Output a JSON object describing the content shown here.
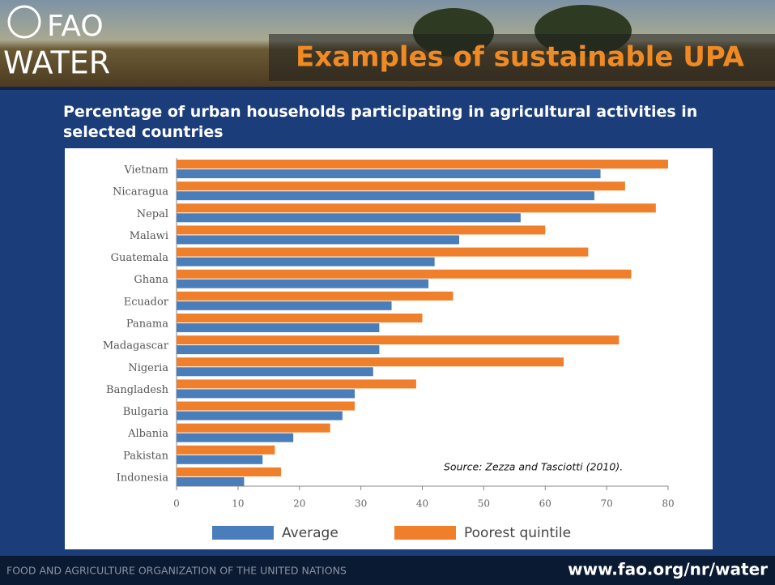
{
  "header": {
    "logo_top": "FAO",
    "logo_bottom": "WATER",
    "title": "Examples of sustainable UPA"
  },
  "chart_data": {
    "type": "bar",
    "orientation": "horizontal",
    "title": "Percentage of urban households participating in agricultural activities in selected countries",
    "annotation": "Source: Zezza and Tasciotti (2010).",
    "categories": [
      "Vietnam",
      "Nicaragua",
      "Nepal",
      "Malawi",
      "Guatemala",
      "Ghana",
      "Ecuador",
      "Panama",
      "Madagascar",
      "Nigeria",
      "Bangladesh",
      "Bulgaria",
      "Albania",
      "Pakistan",
      "Indonesia"
    ],
    "series": [
      {
        "name": "Average",
        "color": "#4a7ebb",
        "values": [
          69,
          68,
          56,
          46,
          42,
          41,
          35,
          33,
          33,
          32,
          29,
          27,
          19,
          14,
          11
        ]
      },
      {
        "name": "Poorest quintile",
        "color": "#f07f2b",
        "values": [
          80,
          73,
          78,
          60,
          67,
          74,
          45,
          40,
          72,
          63,
          39,
          29,
          25,
          16,
          17
        ]
      }
    ],
    "xlim": [
      0,
      80
    ],
    "xticks": [
      0,
      10,
      20,
      30,
      40,
      50,
      60,
      70,
      80
    ],
    "grid": false,
    "legend": "bottom"
  },
  "footer": {
    "left": "FOOD AND AGRICULTURE ORGANIZATION OF THE UNITED NATIONS",
    "right": "www.fao.org/nr/water"
  }
}
